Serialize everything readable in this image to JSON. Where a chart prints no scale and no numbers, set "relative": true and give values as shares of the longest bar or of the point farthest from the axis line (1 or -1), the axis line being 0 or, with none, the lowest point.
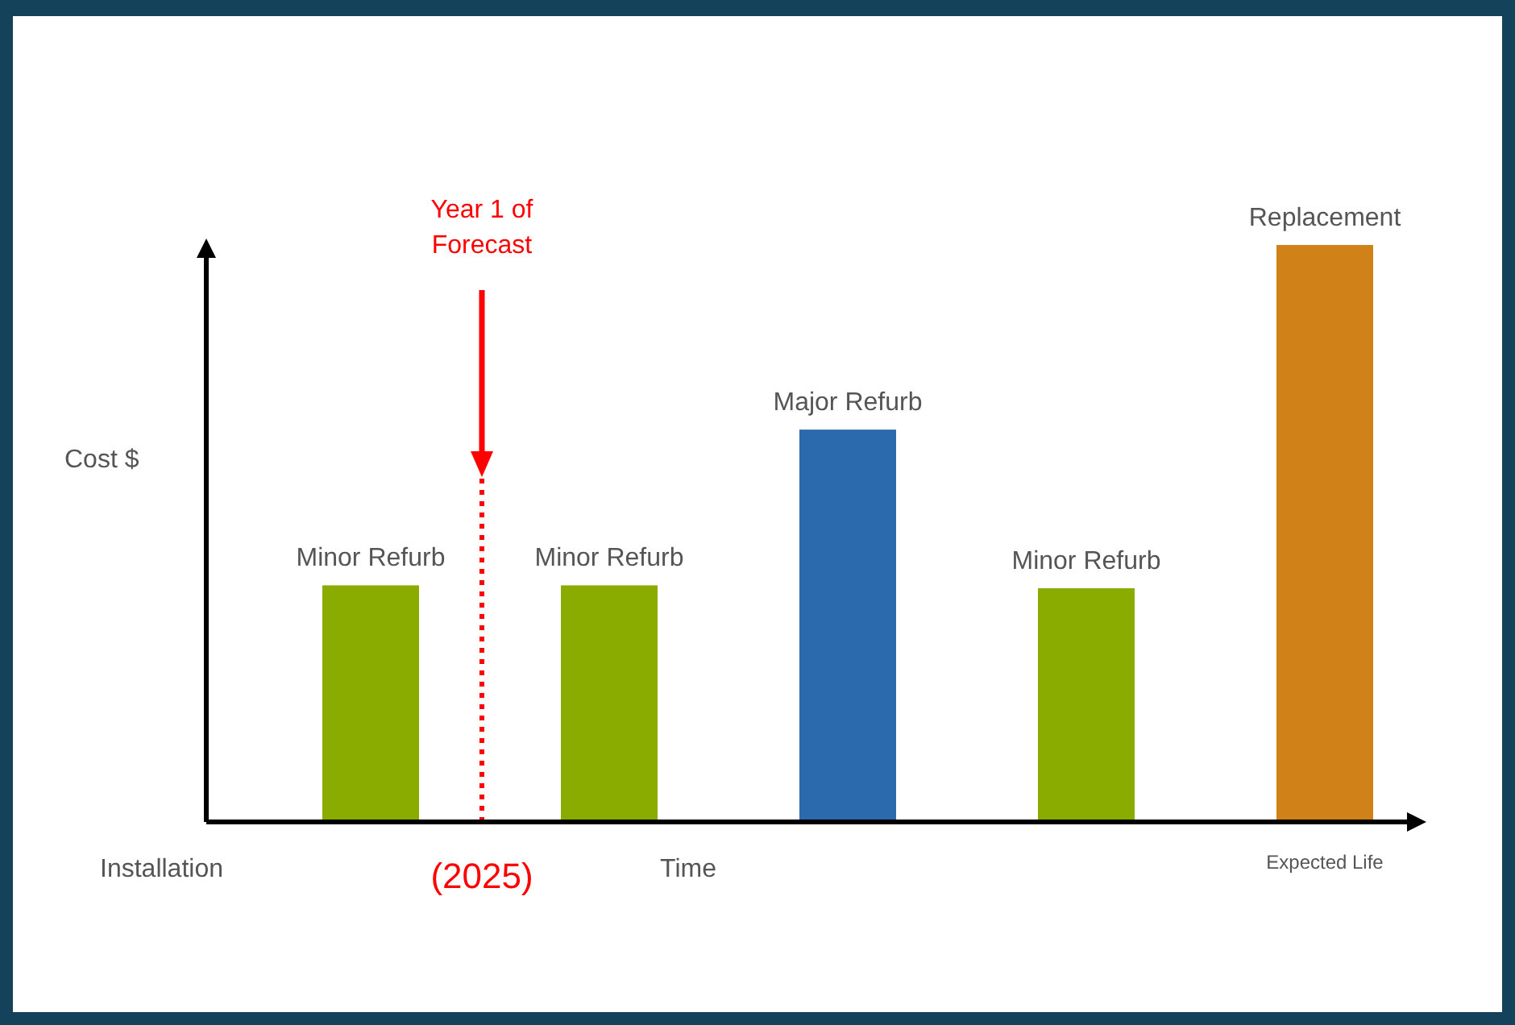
{
  "chart_data": {
    "type": "bar",
    "relative": true,
    "categories": [
      null,
      null,
      null,
      null,
      null
    ],
    "values": [
      0.41,
      0.41,
      0.68,
      0.405,
      1
    ],
    "colors": [
      "#8aab00",
      "#8aab00",
      "#2a6aad",
      "#8aab00",
      "#d08118"
    ],
    "xlabel": "Time",
    "ylabel": "Cost $",
    "ref_lines": [
      {
        "axis": "x",
        "value": "(2025)",
        "label": "Year 1 of Forecast",
        "color": "#ff0000",
        "line_style": "dotted"
      }
    ],
    "annotations": [
      "Minor Refurb",
      "Minor Refurb",
      "Major Refurb",
      "Minor Refurb",
      "Replacement",
      "Installation",
      "Expected Life"
    ]
  }
}
